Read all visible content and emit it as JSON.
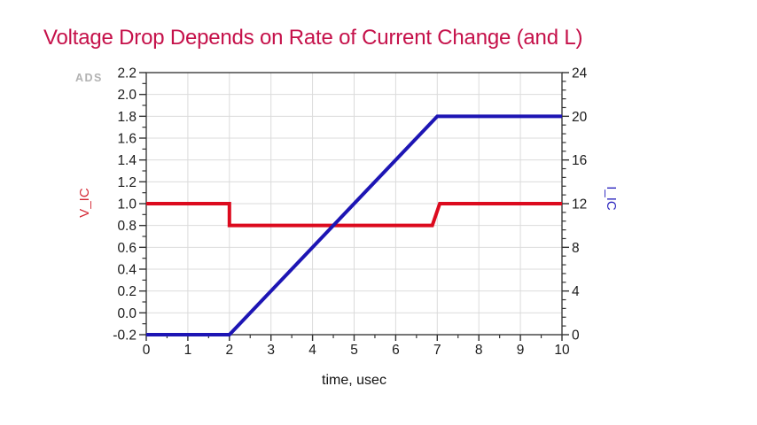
{
  "title": {
    "text": "Voltage Drop Depends on Rate of Current Change (and L)",
    "color": "#C5114A"
  },
  "watermark": "ADS",
  "colors": {
    "grid": "#DBDBDB",
    "axis_frame": "#3C3C3C",
    "tick": "#333333",
    "tick_label": "#1A1A1A",
    "watermark": "#B2B2B2",
    "background": "#FFFFFF"
  },
  "chart_data": {
    "type": "line",
    "title": "Voltage Drop Depends on Rate of Current Change (and L)",
    "grid": true,
    "legend": "none",
    "x_axis": {
      "label": "time, usec",
      "min": 0,
      "max": 10,
      "major_step": 1,
      "minor_step": 0.5,
      "decimals": 0,
      "tick_labels": [
        "0",
        "1",
        "2",
        "3",
        "4",
        "5",
        "6",
        "7",
        "8",
        "9",
        "10"
      ]
    },
    "left_axis": {
      "label": "V_IC",
      "min": -0.2,
      "max": 2.2,
      "major_step": 0.2,
      "minor_step": 0.1,
      "decimals": 1,
      "color": "#D42834",
      "tick_labels": [
        "-0.2",
        "0.0",
        "0.2",
        "0.4",
        "0.6",
        "0.8",
        "1.0",
        "1.2",
        "1.4",
        "1.6",
        "1.8",
        "2.0",
        "2.2"
      ]
    },
    "right_axis": {
      "label": "I_IC",
      "min": 0,
      "max": 24,
      "major_step": 4,
      "minor_step": 0.8,
      "decimals": 0,
      "color": "#2B25BE",
      "tick_labels": [
        "0",
        "4",
        "8",
        "12",
        "16",
        "20",
        "24"
      ]
    },
    "series": [
      {
        "name": "V_IC",
        "axis": "left",
        "color": "#DC0A1E",
        "width": 4,
        "points": [
          [
            0,
            1.0
          ],
          [
            2,
            1.0
          ],
          [
            2,
            0.8
          ],
          [
            6.88,
            0.8
          ],
          [
            7.06,
            1.0
          ],
          [
            10,
            1.0
          ]
        ]
      },
      {
        "name": "I_IC",
        "axis": "right",
        "color": "#1D15B4",
        "width": 4,
        "points": [
          [
            0,
            0
          ],
          [
            2,
            0
          ],
          [
            7,
            20
          ],
          [
            10,
            20
          ]
        ]
      }
    ]
  }
}
